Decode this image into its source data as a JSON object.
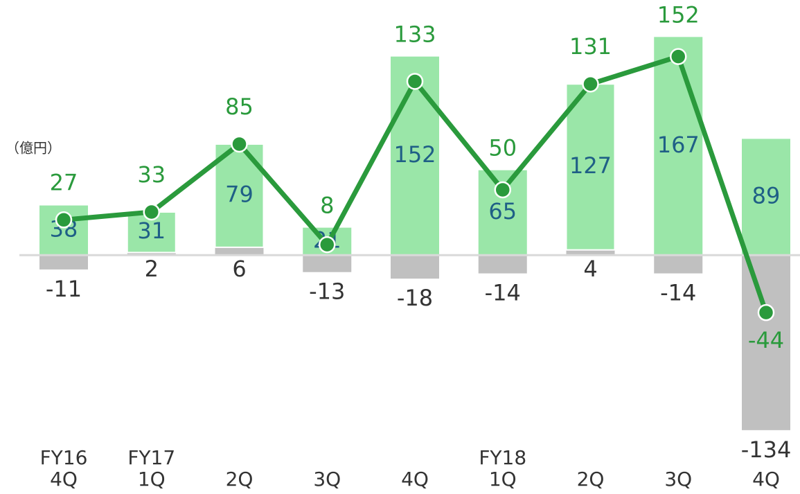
{
  "chart_data": {
    "type": "bar",
    "unit_label": "（億円）",
    "categories": [
      "4Q",
      "1Q",
      "2Q",
      "3Q",
      "4Q",
      "1Q",
      "2Q",
      "3Q",
      "4Q"
    ],
    "year_labels": [
      "FY16",
      "FY17",
      null,
      null,
      null,
      "FY18",
      null,
      null,
      null
    ],
    "series": [
      {
        "color": "#9ae6a8",
        "label_color": "#1f5f86",
        "values": [
          38,
          31,
          79,
          21,
          152,
          65,
          127,
          167,
          89
        ]
      },
      {
        "color": "#c0c0c0",
        "label_color": "#333333",
        "values": [
          -11,
          2,
          6,
          -13,
          -18,
          -14,
          4,
          -14,
          -134
        ]
      }
    ],
    "total": {
      "type": "line",
      "color": "#2a9a3c",
      "values": [
        27,
        33,
        85,
        8,
        133,
        50,
        131,
        152,
        -44
      ]
    },
    "ylim": [
      -150,
      190
    ]
  }
}
